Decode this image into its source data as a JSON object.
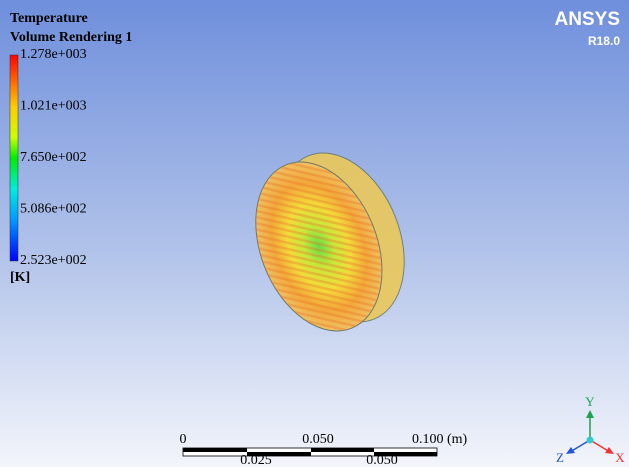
{
  "legend": {
    "title": "Temperature",
    "subtitle": "Volume Rendering 1",
    "labels": [
      "1.278e+003",
      "1.021e+003",
      "7.650e+002",
      "5.086e+002",
      "2.523e+002"
    ],
    "unit": "[K]"
  },
  "brand": {
    "name": "ANSYS",
    "version": "R18.0"
  },
  "scale_bar": {
    "top_labels": [
      "0",
      "0.050",
      "0.100 (m)"
    ],
    "bottom_labels": [
      "0.025",
      "0.050"
    ]
  },
  "triad": {
    "y": "Y",
    "z": "Z",
    "x": "X"
  }
}
